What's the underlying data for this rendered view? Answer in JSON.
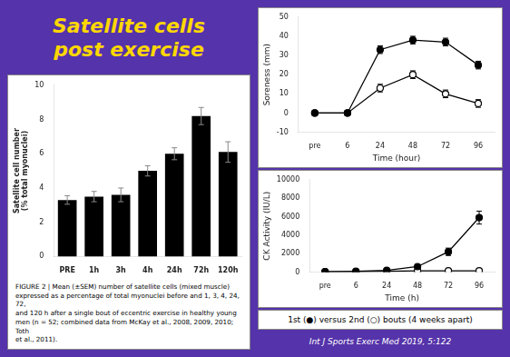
{
  "chart_data": [
    {
      "type": "bar",
      "title": "Satellite cells\npost exercise",
      "categories": [
        "PRE",
        "1h",
        "3h",
        "4h",
        "24h",
        "72h",
        "120h"
      ],
      "values": [
        3.3,
        3.5,
        3.6,
        5.0,
        6.0,
        8.2,
        6.1
      ],
      "errors": [
        0.25,
        0.3,
        0.4,
        0.3,
        0.35,
        0.5,
        0.6
      ],
      "color": "#000000",
      "ylabel": "Satellite cell number\n(% total myonuclei)",
      "ylim": [
        0,
        10
      ],
      "yticks": [
        0,
        2,
        4,
        6,
        8,
        10
      ],
      "grid": false,
      "annotations": [
        "FIGURE 2 | Mean (±SEM) number of satellite cells (mixed muscle)\nexpressed as a percentage of total myonuclei before and 1, 3, 4, 24, 72,\nand 120 h after a single bout of eccentric exercise in healthy young\nmen (n = 52; combined data from McKay et al., 2008, 2009, 2010; Toth\net al., 2011)."
      ]
    },
    {
      "type": "line",
      "categories": [
        "pre",
        "6",
        "24",
        "48",
        "72",
        "96"
      ],
      "series": [
        {
          "color": "#000000",
          "marker": "filled_circle",
          "values": [
            0,
            0,
            33,
            38,
            37,
            25
          ],
          "errors": [
            1,
            1,
            2,
            2,
            2,
            2
          ]
        },
        {
          "color": "#000000",
          "marker": "open_circle",
          "values": [
            0,
            0,
            13,
            20,
            10,
            5
          ],
          "errors": [
            1,
            1,
            2,
            2,
            2,
            2
          ]
        }
      ],
      "xlabel": "Time (hour)",
      "ylabel": "Soreness (mm)",
      "ylim": [
        -10,
        50
      ],
      "yticks": [
        -10,
        0,
        10,
        20,
        30,
        40,
        50
      ],
      "grid": false
    },
    {
      "type": "line",
      "categories": [
        "pre",
        "6",
        "24",
        "48",
        "72",
        "96"
      ],
      "series": [
        {
          "color": "#000000",
          "marker": "filled_circle",
          "values": [
            50,
            100,
            200,
            600,
            2200,
            5900
          ],
          "errors": [
            20,
            30,
            50,
            100,
            400,
            700
          ]
        },
        {
          "color": "#000000",
          "marker": "open_circle",
          "values": [
            50,
            50,
            100,
            150,
            150,
            150
          ],
          "errors": [
            10,
            10,
            20,
            20,
            20,
            20
          ]
        }
      ],
      "xlabel": "Time (h)",
      "ylabel": "CK Activity (IU/L)",
      "ylim": [
        0,
        10000
      ],
      "yticks": [
        0,
        2000,
        4000,
        6000,
        8000,
        10000
      ],
      "grid": false,
      "annotations": [
        "1st (●) versus 2nd (○) bouts (4 weeks apart)",
        "Int J Sports Exerc Med 2019, 5:122"
      ]
    }
  ]
}
